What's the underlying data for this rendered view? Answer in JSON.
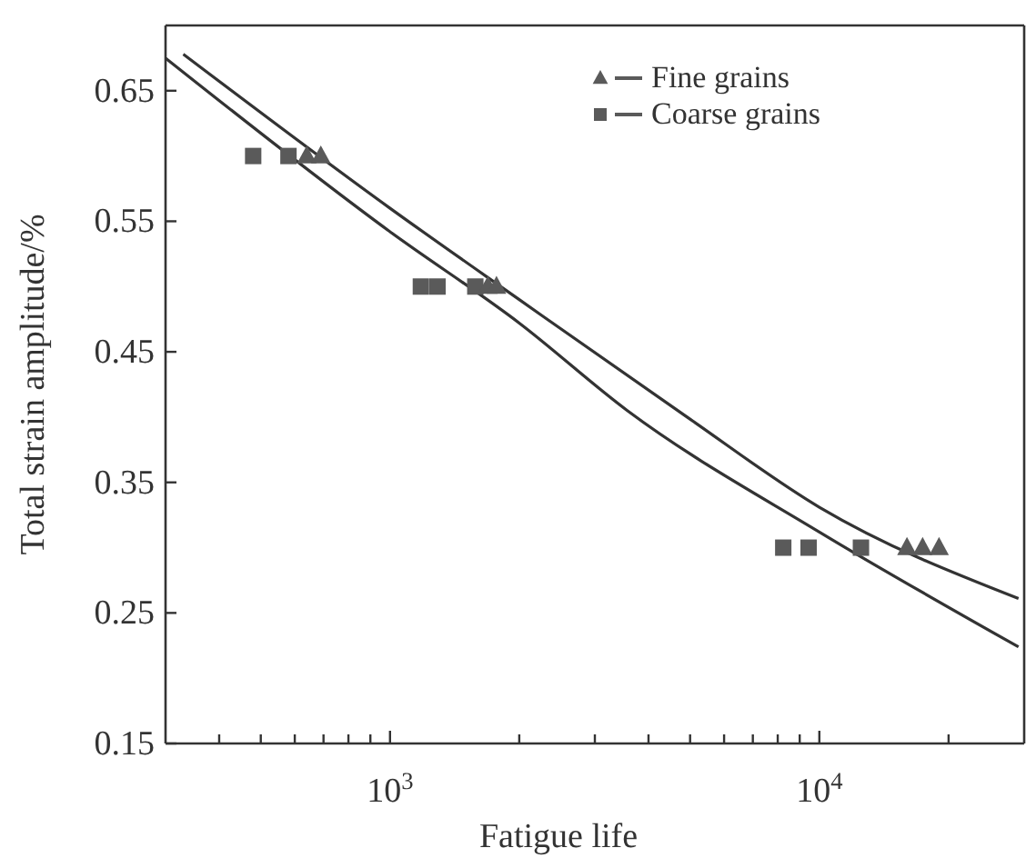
{
  "chart_data": {
    "type": "scatter",
    "xlabel": "Fatigue life",
    "ylabel": "Total strain amplitude/%",
    "log": "x",
    "xlim": [
      300,
      30000
    ],
    "ylim": [
      0.15,
      0.7
    ],
    "xticks": [
      {
        "value": 400,
        "label": null
      },
      {
        "value": 500,
        "label": null
      },
      {
        "value": 600,
        "label": null
      },
      {
        "value": 700,
        "label": null
      },
      {
        "value": 800,
        "label": null
      },
      {
        "value": 900,
        "label": null
      },
      {
        "value": 1000,
        "label": "10$^{3}$"
      },
      {
        "value": 2000,
        "label": null
      },
      {
        "value": 3000,
        "label": null
      },
      {
        "value": 4000,
        "label": null
      },
      {
        "value": 5000,
        "label": null
      },
      {
        "value": 6000,
        "label": null
      },
      {
        "value": 7000,
        "label": null
      },
      {
        "value": 8000,
        "label": null
      },
      {
        "value": 9000,
        "label": null
      },
      {
        "value": 10000,
        "label": "10$^{4}$"
      },
      {
        "value": 20000,
        "label": null
      }
    ],
    "yticks": [
      0.15,
      0.25,
      0.35,
      0.45,
      0.55,
      0.65
    ],
    "grid": false,
    "legend": "top right",
    "series": [
      {
        "name": "Fine grains",
        "marker": "triangle",
        "color": "#5a5a5a",
        "x": [
          640,
          690,
          1690,
          1770,
          16000,
          17400,
          19000
        ],
        "values": [
          0.6,
          0.6,
          0.5,
          0.5,
          0.3,
          0.3,
          0.3
        ]
      },
      {
        "name": "Coarse grains",
        "marker": "square",
        "color": "#5a5a5a",
        "x": [
          480,
          580,
          1180,
          1290,
          1580,
          8240,
          9440,
          12500
        ],
        "values": [
          0.6,
          0.6,
          0.5,
          0.5,
          0.5,
          0.3,
          0.3,
          0.3
        ]
      },
      {
        "type": "line",
        "marker": "none",
        "line_style": "solid",
        "color": "#333333",
        "x": [
          330,
          1000,
          2000,
          4920,
          10000,
          29100
        ],
        "values": [
          0.678,
          0.56,
          0.49,
          0.4,
          0.331,
          0.261
        ]
      },
      {
        "type": "line",
        "marker": "none",
        "line_style": "solid",
        "color": "#333333",
        "x": [
          300,
          1000,
          2000,
          3570,
          10000,
          29100
        ],
        "values": [
          0.675,
          0.542,
          0.472,
          0.405,
          0.312,
          0.224
        ]
      }
    ]
  }
}
